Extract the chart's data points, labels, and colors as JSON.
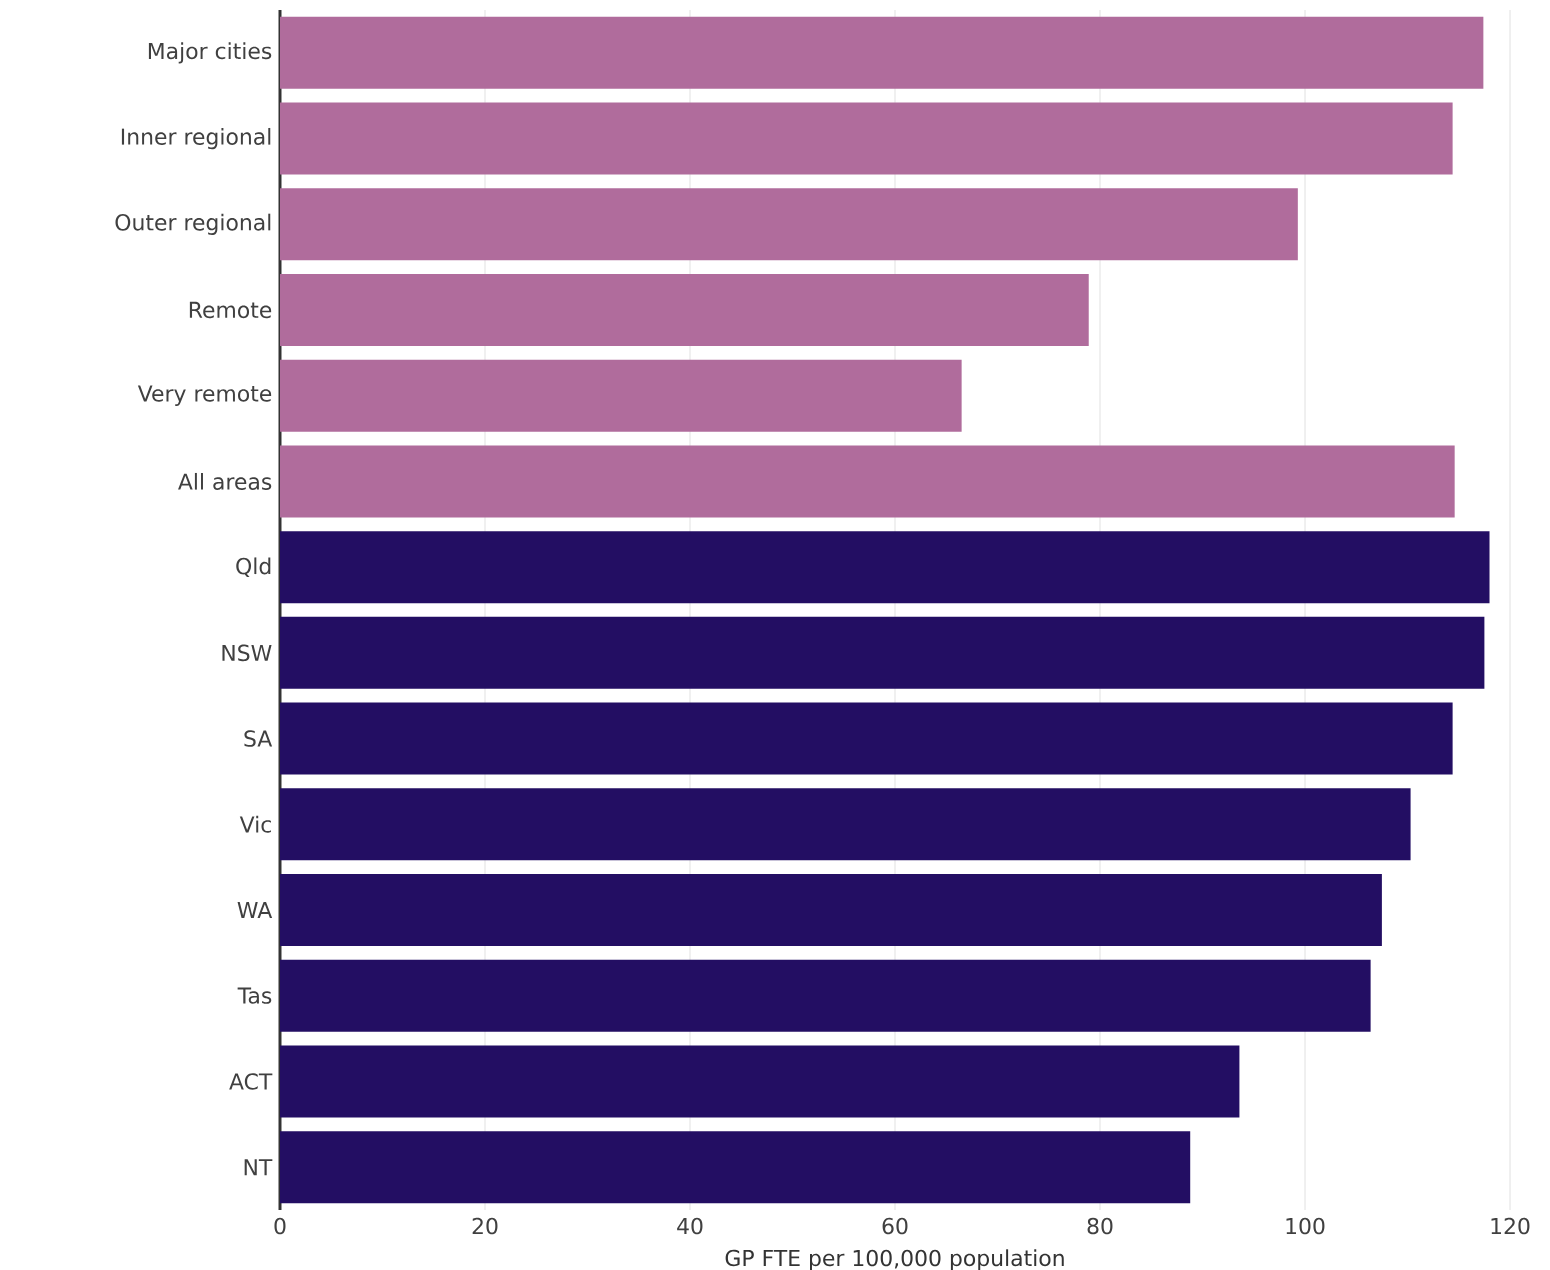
{
  "chart_data": {
    "type": "bar",
    "orientation": "horizontal",
    "xlabel": "GP FTE per 100,000 population",
    "categories": [
      "Major cities",
      "Inner regional",
      "Outer regional",
      "Remote",
      "Very remote",
      "All areas",
      "Qld",
      "NSW",
      "SA",
      "Vic",
      "WA",
      "Tas",
      "ACT",
      "NT"
    ],
    "values": [
      117.4,
      114.4,
      99.3,
      78.9,
      66.5,
      114.6,
      118,
      117.5,
      114.4,
      110.3,
      107.5,
      106.4,
      93.6,
      88.8
    ],
    "colors": [
      "#b06c9c",
      "#b06c9c",
      "#b06c9c",
      "#b06c9c",
      "#b06c9c",
      "#b06c9c",
      "#230e63",
      "#230e63",
      "#230e63",
      "#230e63",
      "#230e63",
      "#230e63",
      "#230e63",
      "#230e63"
    ],
    "xlim": [
      0,
      120
    ],
    "xticks": [
      0,
      20,
      40,
      60,
      80,
      100,
      120
    ],
    "grid": "x"
  }
}
